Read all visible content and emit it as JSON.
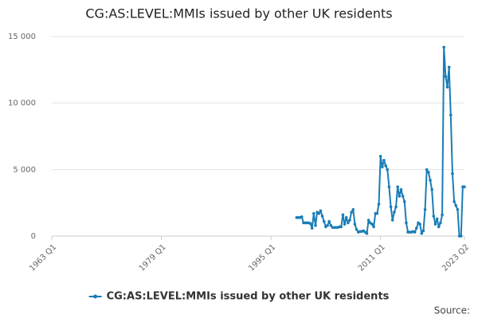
{
  "chart_data": {
    "type": "line",
    "title": "CG:AS:LEVEL:MMIs issued by other UK residents",
    "source": "Source:",
    "xlim": [
      "1963 Q1",
      "2023 Q2"
    ],
    "xticks": [
      "1963 Q1",
      "1979 Q1",
      "1995 Q1",
      "2011 Q1",
      "2023 Q2"
    ],
    "ylim": [
      0,
      15000
    ],
    "yticks": [
      0,
      {
        "value": 5000,
        "label": "5 000"
      },
      {
        "value": 10000,
        "label": "10 000"
      },
      {
        "value": 15000,
        "label": "15 000"
      }
    ],
    "grid": true,
    "legend": "bottom",
    "x": [
      "1998 Q4",
      "1999 Q1",
      "1999 Q2",
      "1999 Q3",
      "1999 Q4",
      "2000 Q1",
      "2000 Q2",
      "2000 Q3",
      "2000 Q4",
      "2001 Q1",
      "2001 Q2",
      "2001 Q3",
      "2001 Q4",
      "2002 Q1",
      "2002 Q2",
      "2002 Q3",
      "2002 Q4",
      "2003 Q1",
      "2003 Q2",
      "2003 Q3",
      "2003 Q4",
      "2004 Q1",
      "2004 Q2",
      "2004 Q3",
      "2004 Q4",
      "2005 Q1",
      "2005 Q2",
      "2005 Q3",
      "2005 Q4",
      "2006 Q1",
      "2006 Q2",
      "2006 Q3",
      "2006 Q4",
      "2007 Q1",
      "2007 Q2",
      "2007 Q3",
      "2007 Q4",
      "2008 Q1",
      "2008 Q2",
      "2008 Q3",
      "2008 Q4",
      "2009 Q1",
      "2009 Q2",
      "2009 Q3",
      "2009 Q4",
      "2010 Q1",
      "2010 Q2",
      "2010 Q3",
      "2010 Q4",
      "2011 Q1",
      "2011 Q2",
      "2011 Q3",
      "2011 Q4",
      "2012 Q1",
      "2012 Q2",
      "2012 Q3",
      "2012 Q4",
      "2013 Q1",
      "2013 Q2",
      "2013 Q3",
      "2013 Q4",
      "2014 Q1",
      "2014 Q2",
      "2014 Q3",
      "2014 Q4",
      "2015 Q1",
      "2015 Q2",
      "2015 Q3",
      "2015 Q4",
      "2016 Q1",
      "2016 Q2",
      "2016 Q3",
      "2016 Q4",
      "2017 Q1",
      "2017 Q2",
      "2017 Q3",
      "2017 Q4",
      "2018 Q1",
      "2018 Q2",
      "2018 Q3",
      "2018 Q4",
      "2019 Q1",
      "2019 Q2",
      "2019 Q3",
      "2019 Q4",
      "2020 Q1",
      "2020 Q2",
      "2020 Q3",
      "2020 Q4",
      "2021 Q1",
      "2021 Q2",
      "2021 Q3",
      "2021 Q4",
      "2022 Q1",
      "2022 Q2",
      "2022 Q3",
      "2022 Q4",
      "2023 Q1",
      "2023 Q2"
    ],
    "series": [
      {
        "name": "CG:AS:LEVEL:MMIs issued by other UK residents",
        "color": "#1a7db6",
        "values": [
          1400,
          1400,
          1400,
          1450,
          1000,
          1000,
          1000,
          1000,
          950,
          600,
          1700,
          800,
          1800,
          1700,
          1900,
          1500,
          1100,
          700,
          800,
          1100,
          800,
          650,
          650,
          650,
          650,
          700,
          700,
          1600,
          900,
          1400,
          1000,
          1200,
          1800,
          2000,
          900,
          500,
          300,
          350,
          350,
          400,
          300,
          200,
          1200,
          1000,
          900,
          700,
          1700,
          1700,
          2400,
          6000,
          5200,
          5700,
          5300,
          5000,
          3700,
          2200,
          1200,
          1800,
          2200,
          3700,
          3000,
          3500,
          3000,
          2600,
          1000,
          300,
          300,
          300,
          350,
          300,
          600,
          1000,
          900,
          200,
          400,
          2000,
          5000,
          4800,
          4200,
          3500,
          1500,
          900,
          1300,
          700,
          1000,
          1600,
          14200,
          12000,
          11200,
          12700,
          9100,
          4700,
          2600,
          2300,
          2000,
          0,
          0,
          3700,
          3700
        ]
      }
    ]
  }
}
